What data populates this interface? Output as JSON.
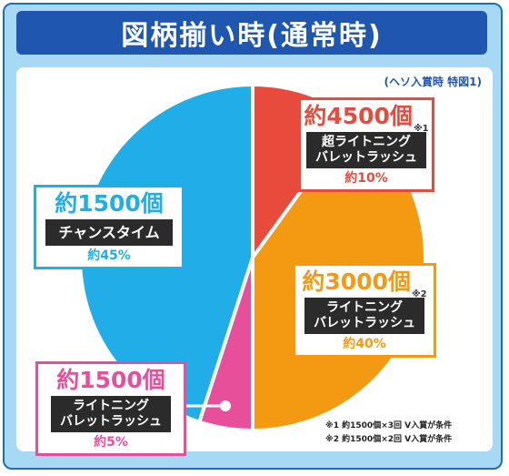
{
  "title": "図柄揃い時(通常時)",
  "subtitle": "(ヘソ入賞時 特図1)",
  "chart_data": {
    "type": "pie",
    "slices": [
      {
        "balls": "約4500個",
        "mark": "※1",
        "mode": "超ライトニング\nバレットラッシュ",
        "percent_label": "約10%",
        "value": 10,
        "color": "#e84a3c"
      },
      {
        "balls": "約3000個",
        "mark": "※2",
        "mode": "ライトニング\nバレットラッシュ",
        "percent_label": "約40%",
        "value": 40,
        "color": "#f39a12"
      },
      {
        "balls": "約1500個",
        "mark": "",
        "mode": "ライトニング\nバレットラッシュ",
        "percent_label": "約5%",
        "value": 5,
        "color": "#e84f9a"
      },
      {
        "balls": "約1500個",
        "mark": "",
        "mode": "チャンスタイム",
        "percent_label": "約45%",
        "value": 45,
        "color": "#21ade8"
      }
    ]
  },
  "notes": [
    "※1 約1500個×3回 V入賞が条件",
    "※2 約1500個×2回 V入賞が条件"
  ]
}
